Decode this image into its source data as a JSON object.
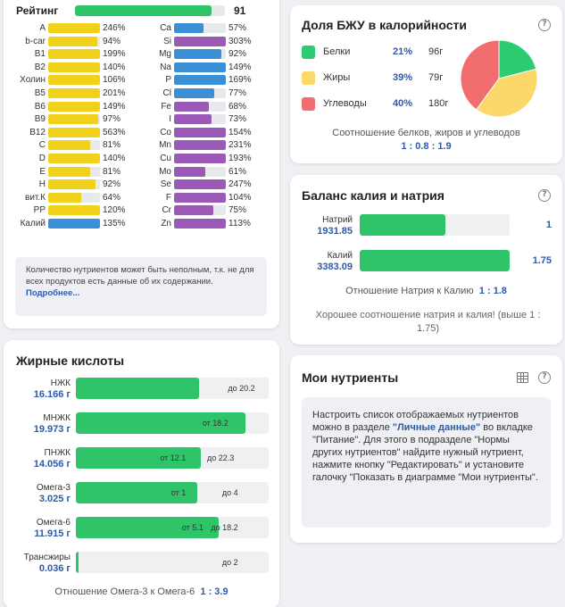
{
  "vitamins": {
    "rating_label": "Рейтинг",
    "rating_value": "91",
    "rating_fraction": 0.91,
    "left": [
      {
        "name": "A",
        "pct": "246%",
        "color": "#f2d11b",
        "fill": 1.0
      },
      {
        "name": "b-car",
        "pct": "94%",
        "color": "#f2d11b",
        "fill": 0.94
      },
      {
        "name": "B1",
        "pct": "199%",
        "color": "#f2d11b",
        "fill": 1.0
      },
      {
        "name": "B2",
        "pct": "140%",
        "color": "#f2d11b",
        "fill": 1.0
      },
      {
        "name": "Холин",
        "pct": "106%",
        "color": "#f2d11b",
        "fill": 1.0
      },
      {
        "name": "B5",
        "pct": "201%",
        "color": "#f2d11b",
        "fill": 1.0
      },
      {
        "name": "B6",
        "pct": "149%",
        "color": "#f2d11b",
        "fill": 1.0
      },
      {
        "name": "B9",
        "pct": "97%",
        "color": "#f2d11b",
        "fill": 0.97
      },
      {
        "name": "B12",
        "pct": "563%",
        "color": "#f2d11b",
        "fill": 1.0
      },
      {
        "name": "C",
        "pct": "81%",
        "color": "#f2d11b",
        "fill": 0.81
      },
      {
        "name": "D",
        "pct": "140%",
        "color": "#f2d11b",
        "fill": 1.0
      },
      {
        "name": "E",
        "pct": "81%",
        "color": "#f2d11b",
        "fill": 0.81
      },
      {
        "name": "H",
        "pct": "92%",
        "color": "#f2d11b",
        "fill": 0.92
      },
      {
        "name": "вит.К",
        "pct": "64%",
        "color": "#f2d11b",
        "fill": 0.64
      },
      {
        "name": "PP",
        "pct": "120%",
        "color": "#f2d11b",
        "fill": 1.0
      },
      {
        "name": "Калий",
        "pct": "135%",
        "color": "#3a8fd6",
        "fill": 1.0
      }
    ],
    "right": [
      {
        "name": "Ca",
        "pct": "57%",
        "color": "#3a8fd6",
        "fill": 0.57
      },
      {
        "name": "Si",
        "pct": "303%",
        "color": "#9b59b6",
        "fill": 1.0
      },
      {
        "name": "Mg",
        "pct": "92%",
        "color": "#3a8fd6",
        "fill": 0.92
      },
      {
        "name": "Na",
        "pct": "149%",
        "color": "#3a8fd6",
        "fill": 1.0
      },
      {
        "name": "P",
        "pct": "169%",
        "color": "#3a8fd6",
        "fill": 1.0
      },
      {
        "name": "Cl",
        "pct": "77%",
        "color": "#3a8fd6",
        "fill": 0.77
      },
      {
        "name": "Fe",
        "pct": "68%",
        "color": "#9b59b6",
        "fill": 0.68
      },
      {
        "name": "I",
        "pct": "73%",
        "color": "#9b59b6",
        "fill": 0.73
      },
      {
        "name": "Co",
        "pct": "154%",
        "color": "#9b59b6",
        "fill": 1.0
      },
      {
        "name": "Mn",
        "pct": "231%",
        "color": "#9b59b6",
        "fill": 1.0
      },
      {
        "name": "Cu",
        "pct": "193%",
        "color": "#9b59b6",
        "fill": 1.0
      },
      {
        "name": "Mo",
        "pct": "61%",
        "color": "#9b59b6",
        "fill": 0.61
      },
      {
        "name": "Se",
        "pct": "247%",
        "color": "#9b59b6",
        "fill": 1.0
      },
      {
        "name": "F",
        "pct": "104%",
        "color": "#9b59b6",
        "fill": 1.0
      },
      {
        "name": "Cr",
        "pct": "75%",
        "color": "#9b59b6",
        "fill": 0.75
      },
      {
        "name": "Zn",
        "pct": "113%",
        "color": "#9b59b6",
        "fill": 1.0
      }
    ],
    "note": "Количество нутриентов может быть неполным, т.к. не для всех продуктов есть данные об их содержании.",
    "note_link": "Подробнее..."
  },
  "fatty_acids": {
    "title": "Жирные кислоты",
    "rows": [
      {
        "name": "НЖК",
        "value": "16.166 г",
        "fill": 0.64,
        "marks": [
          {
            "text": "до 20.2",
            "pos": 0.77,
            "side": "right"
          }
        ]
      },
      {
        "name": "МНЖК",
        "value": "19.973 г",
        "fill": 0.88,
        "marks": [
          {
            "text": "от 18.2",
            "pos": 0.8,
            "side": "left"
          }
        ]
      },
      {
        "name": "ПНЖК",
        "value": "14.056 г",
        "fill": 0.65,
        "marks": [
          {
            "text": "от 12.1",
            "pos": 0.58,
            "side": "left"
          },
          {
            "text": "до 22.3",
            "pos": 0.83,
            "side": "left"
          }
        ]
      },
      {
        "name": "Омега-3",
        "value": "3.025 г",
        "fill": 0.63,
        "marks": [
          {
            "text": "от 1",
            "pos": 0.58,
            "side": "left"
          },
          {
            "text": "до 4",
            "pos": 0.85,
            "side": "left"
          }
        ]
      },
      {
        "name": "Омега-6",
        "value": "11.915 г",
        "fill": 0.74,
        "marks": [
          {
            "text": "от 5.1",
            "pos": 0.67,
            "side": "left"
          },
          {
            "text": "до 18.2",
            "pos": 0.85,
            "side": "left"
          }
        ]
      },
      {
        "name": "Трансжиры",
        "value": "0.036 г",
        "fill": 0.01,
        "marks": [
          {
            "text": "до 2",
            "pos": 0.85,
            "side": "left"
          }
        ]
      }
    ],
    "ratio_label": "Отношение Омега-3 к Омега-6",
    "ratio_value": "1 : 3.9"
  },
  "bju": {
    "title": "Доля БЖУ в калорийности",
    "help": "?",
    "rows": [
      {
        "name": "Белки",
        "pct": "21%",
        "grams": "96г",
        "color": "#2ecc71",
        "share": 21
      },
      {
        "name": "Жиры",
        "pct": "39%",
        "grams": "79г",
        "color": "#fcd769",
        "share": 39
      },
      {
        "name": "Углеводы",
        "pct": "40%",
        "grams": "180г",
        "color": "#f26d6d",
        "share": 40
      }
    ],
    "subtitle": "Соотношение белков, жиров и углеводов",
    "ratio": "1 : 0.8 : 1.9"
  },
  "kna": {
    "title": "Баланс калия и натрия",
    "help": "?",
    "rows": [
      {
        "name": "Натрий",
        "value": "1931.85",
        "fill": 0.57,
        "num": "1"
      },
      {
        "name": "Калий",
        "value": "3383.09",
        "fill": 1.0,
        "num": "1.75"
      }
    ],
    "ratio_label": "Отношение Натрия к Калию",
    "ratio_value": "1 : 1.8",
    "good_text": "Хорошее соотношение натрия и калия! (выше 1 : 1.75)"
  },
  "my_nutrients": {
    "title": "Мои нутриенты",
    "help": "?",
    "text_1": "Настроить список отображаемых нутриентов можно в разделе ",
    "link_1": "\"Личные данные\"",
    "text_2": " во вкладке \"Питание\". Для этого в подразделе \"Нормы других нутриентов\" найдите нужный нутриент, нажмите кнопку \"Редактировать\" и установите галочку \"Показать в диаграмме \"Мои нутриенты\"."
  }
}
